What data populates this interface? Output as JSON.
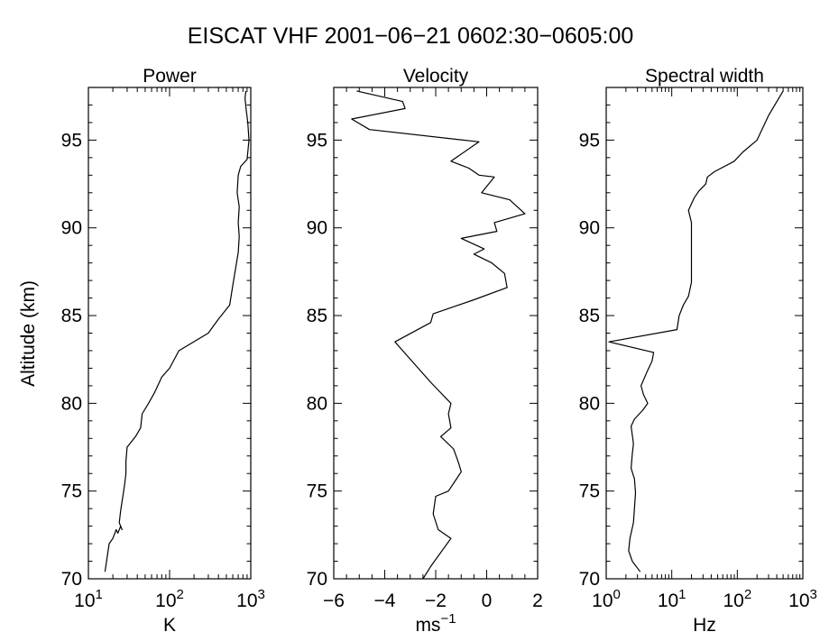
{
  "figure": {
    "title": "EISCAT VHF 2001−06−21 0602:30−0605:00",
    "ylabel": "Altitude (km)"
  },
  "chart_data": [
    {
      "type": "line",
      "title": "Power",
      "xlabel": "K",
      "xlabel_sup": "",
      "xscale": "log",
      "xlim": [
        10,
        1000
      ],
      "xticks": [
        {
          "v": 10,
          "base": "10",
          "exp": "1"
        },
        {
          "v": 100,
          "base": "10",
          "exp": "2"
        },
        {
          "v": 1000,
          "base": "10",
          "exp": "3"
        }
      ],
      "ylim": [
        70,
        98
      ],
      "yticks": [
        "70",
        "75",
        "80",
        "85",
        "90",
        "95"
      ],
      "series": [
        {
          "x": [
            16,
            17,
            18,
            20,
            22,
            23,
            25,
            26,
            24,
            25,
            26,
            27,
            28,
            29,
            29,
            30,
            38,
            44,
            46,
            55,
            65,
            80,
            100,
            130,
            300,
            400,
            550,
            600,
            650,
            700,
            720,
            700,
            720,
            680,
            700,
            750,
            900,
            950,
            920,
            880,
            850,
            870
          ],
          "y": [
            70.4,
            71.2,
            72.0,
            72.3,
            72.8,
            72.6,
            73.0,
            72.8,
            73.2,
            73.9,
            74.4,
            74.9,
            75.4,
            76.0,
            76.7,
            77.5,
            78.1,
            78.6,
            79.4,
            80.0,
            80.6,
            81.5,
            82.0,
            83.0,
            84.0,
            84.8,
            85.6,
            86.7,
            87.7,
            88.6,
            89.5,
            90.3,
            91.2,
            92.0,
            93.0,
            93.5,
            93.9,
            95.0,
            96.0,
            96.7,
            97.4,
            97.8
          ]
        }
      ]
    },
    {
      "type": "line",
      "title": "Velocity",
      "xlabel": "ms",
      "xlabel_sup": "−1",
      "xscale": "linear",
      "xlim": [
        -6,
        2
      ],
      "xticks": [
        {
          "v": -6,
          "base": "−6",
          "exp": ""
        },
        {
          "v": -4,
          "base": "−4",
          "exp": ""
        },
        {
          "v": -2,
          "base": "−2",
          "exp": ""
        },
        {
          "v": 0,
          "base": "0",
          "exp": ""
        },
        {
          "v": 2,
          "base": "2",
          "exp": ""
        }
      ],
      "ylim": [
        70,
        98
      ],
      "yticks": [
        "70",
        "75",
        "80",
        "85",
        "90",
        "95"
      ],
      "series": [
        {
          "x": [
            -2.5,
            -2.2,
            -1.4,
            -1.9,
            -2.1,
            -2.0,
            -1.5,
            -1.0,
            -1.1,
            -1.3,
            -1.8,
            -1.4,
            -1.5,
            -1.4,
            -2.2,
            -3.6,
            -2.2,
            -2.1,
            -0.5,
            0.8,
            0.7,
            0.2,
            -0.5,
            -0.1,
            -1.0,
            0.4,
            0.3,
            1.5,
            0.9,
            -0.2,
            0.3,
            -0.3,
            -0.7,
            -1.4,
            -0.3,
            -4.6,
            -5.3,
            -3.2,
            -3.3,
            -5.1
          ],
          "y": [
            70.0,
            70.7,
            72.3,
            72.8,
            73.7,
            74.7,
            75.0,
            76.1,
            76.6,
            77.4,
            78.1,
            78.6,
            79.4,
            80.0,
            81.2,
            83.5,
            84.6,
            85.1,
            85.9,
            86.6,
            87.4,
            88.0,
            88.5,
            88.8,
            89.4,
            89.8,
            90.3,
            90.8,
            91.6,
            92.0,
            92.9,
            93.0,
            93.4,
            93.8,
            94.9,
            95.6,
            96.2,
            96.8,
            97.2,
            97.8
          ]
        }
      ]
    },
    {
      "type": "line",
      "title": "Spectral width",
      "xlabel": "Hz",
      "xlabel_sup": "",
      "xscale": "log",
      "xlim": [
        1,
        1000
      ],
      "xticks": [
        {
          "v": 1,
          "base": "10",
          "exp": "0"
        },
        {
          "v": 10,
          "base": "10",
          "exp": "1"
        },
        {
          "v": 100,
          "base": "10",
          "exp": "2"
        },
        {
          "v": 1000,
          "base": "10",
          "exp": "3"
        }
      ],
      "ylim": [
        70,
        98
      ],
      "yticks": [
        "70",
        "75",
        "80",
        "85",
        "90",
        "95"
      ],
      "series": [
        {
          "x": [
            3.3,
            2.5,
            2.2,
            2.3,
            2.6,
            2.7,
            2.8,
            2.7,
            2.4,
            2.5,
            2.6,
            2.5,
            2.4,
            2.7,
            3.6,
            4.3,
            3.7,
            3.4,
            4.2,
            5.0,
            5.3,
            1.1,
            12,
            13,
            15,
            18,
            20,
            20,
            20,
            20,
            20,
            18,
            22,
            26,
            33,
            35,
            45,
            90,
            120,
            200,
            300,
            500
          ],
          "y": [
            70.4,
            71.0,
            71.6,
            72.3,
            73.2,
            74.0,
            74.9,
            75.7,
            76.3,
            77.1,
            77.7,
            78.2,
            78.7,
            79.1,
            79.6,
            80.0,
            80.5,
            81.0,
            81.8,
            82.4,
            82.9,
            83.5,
            84.2,
            85.0,
            85.6,
            86.1,
            86.9,
            87.8,
            88.6,
            89.5,
            90.3,
            91.0,
            91.7,
            92.1,
            92.5,
            92.9,
            93.2,
            93.8,
            94.3,
            95.0,
            96.4,
            97.8
          ]
        }
      ]
    }
  ]
}
